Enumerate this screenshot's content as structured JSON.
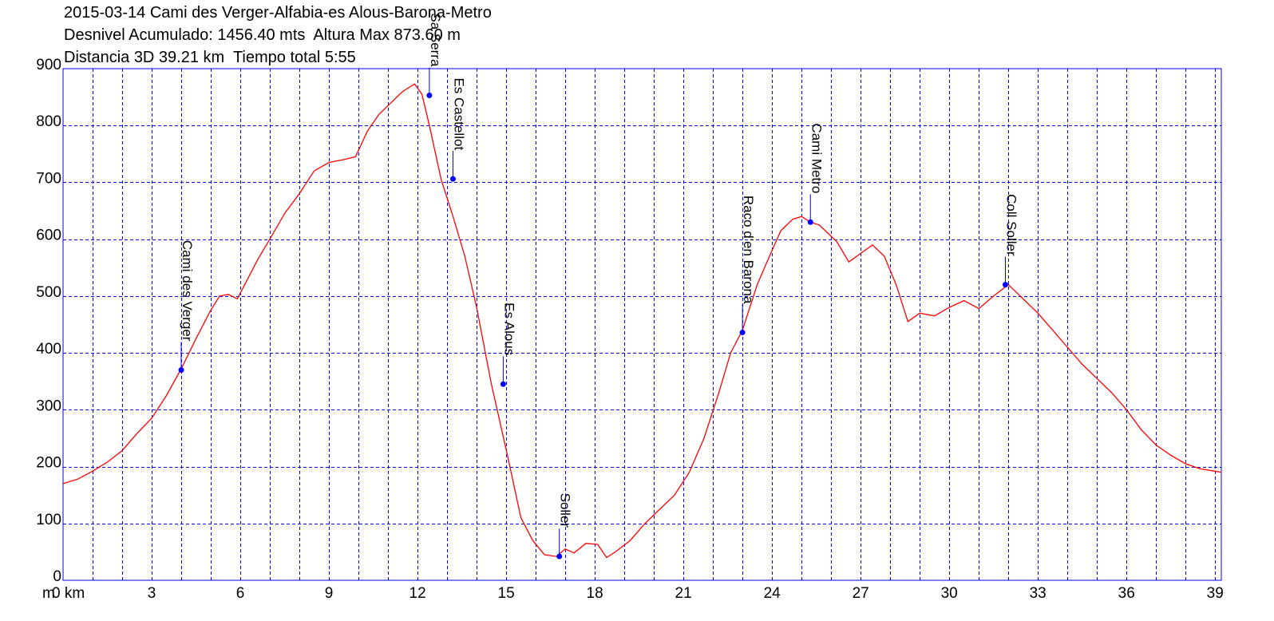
{
  "chart_data": {
    "type": "line",
    "title_lines": [
      "2015-03-14 Cami des Verger-Alfabia-es Alous-Barona-Metro",
      "Desnivel Acumulado: 1456.40 mts  Altura Max 873.60 m",
      "Distancia 3D 39.21 km  Tiempo total 5:55"
    ],
    "xlabel_prefix": "m",
    "x_tick_labels": [
      "0 km",
      "3",
      "6",
      "9",
      "12",
      "15",
      "18",
      "21",
      "24",
      "27",
      "30",
      "33",
      "36",
      "39"
    ],
    "x_ticks": [
      0,
      3,
      6,
      9,
      12,
      15,
      18,
      21,
      24,
      27,
      30,
      33,
      36,
      39
    ],
    "y_tick_labels": [
      "0",
      "100",
      "200",
      "300",
      "400",
      "500",
      "600",
      "700",
      "800",
      "900"
    ],
    "y_ticks": [
      0,
      100,
      200,
      300,
      400,
      500,
      600,
      700,
      800,
      900
    ],
    "xlim": [
      0,
      39.21
    ],
    "ylim": [
      0,
      900
    ],
    "grid": true,
    "colors": {
      "line": "#ff0000",
      "grid": "#0000ff",
      "frame": "#0000ff",
      "waypoint": "#0000ff",
      "axis_text": "#000000"
    },
    "series": [
      {
        "x": [
          0,
          0.5,
          1,
          1.5,
          2,
          2.5,
          3,
          3.5,
          4,
          4.5,
          5,
          5.3,
          5.6,
          5.9,
          6.2,
          6.6,
          7,
          7.5,
          8,
          8.5,
          9,
          9.5,
          9.9,
          10.3,
          10.7,
          11.1,
          11.5,
          11.9,
          12.15,
          12.4,
          12.8,
          13.2,
          13.6,
          14,
          14.5,
          15,
          15.5,
          15.9,
          16.3,
          16.7,
          17,
          17.3,
          17.7,
          18.1,
          18.4,
          18.7,
          19.2,
          19.7,
          20.2,
          20.7,
          21.2,
          21.7,
          22.2,
          22.6,
          23,
          23.5,
          24,
          24.3,
          24.7,
          25,
          25.3,
          25.6,
          25.9,
          26.2,
          26.6,
          27,
          27.4,
          27.8,
          28.2,
          28.6,
          29,
          29.5,
          30,
          30.5,
          31,
          31.5,
          32,
          32.5,
          33,
          33.5,
          34,
          34.5,
          35,
          35.5,
          36,
          36.5,
          37,
          37.5,
          38,
          38.5,
          39,
          39.21
        ],
        "y": [
          170,
          178,
          192,
          208,
          228,
          258,
          285,
          325,
          372,
          425,
          475,
          500,
          503,
          495,
          525,
          565,
          600,
          645,
          680,
          720,
          735,
          740,
          745,
          790,
          820,
          840,
          860,
          873,
          855,
          800,
          705,
          640,
          570,
          480,
          345,
          230,
          110,
          70,
          45,
          42,
          55,
          48,
          65,
          63,
          40,
          50,
          70,
          100,
          125,
          150,
          190,
          250,
          330,
          400,
          440,
          520,
          580,
          615,
          635,
          640,
          630,
          625,
          610,
          595,
          560,
          575,
          590,
          570,
          520,
          455,
          470,
          465,
          480,
          492,
          478,
          500,
          520,
          495,
          470,
          440,
          410,
          380,
          355,
          330,
          300,
          265,
          238,
          220,
          205,
          196,
          192,
          190
        ]
      }
    ],
    "waypoints": [
      {
        "label": "Cami des Verger",
        "x": 4.0,
        "y": 370
      },
      {
        "label": "Sa Serra",
        "x": 12.4,
        "y": 853
      },
      {
        "label": "Es Castellot",
        "x": 13.2,
        "y": 706
      },
      {
        "label": "Es Alous",
        "x": 14.9,
        "y": 345
      },
      {
        "label": "Soller",
        "x": 16.8,
        "y": 42
      },
      {
        "label": "Raco d'en Barona",
        "x": 23.0,
        "y": 436
      },
      {
        "label": "Cami Metro",
        "x": 25.3,
        "y": 630
      },
      {
        "label": "Coll Soller",
        "x": 31.9,
        "y": 520
      }
    ]
  }
}
